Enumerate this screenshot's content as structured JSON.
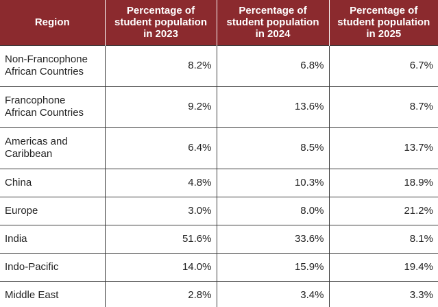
{
  "table": {
    "headers": [
      "Region",
      "Percentage of student population in 2023",
      "Percentage of student population in 2024",
      "Percentage of student population in 2025"
    ],
    "rows": [
      {
        "region": "Non-Francophone African Countries",
        "y2023": "8.2%",
        "y2024": "6.8%",
        "y2025": "6.7%"
      },
      {
        "region": "Francophone African Countries",
        "y2023": "9.2%",
        "y2024": "13.6%",
        "y2025": "8.7%"
      },
      {
        "region": "Americas and Caribbean",
        "y2023": "6.4%",
        "y2024": "8.5%",
        "y2025": "13.7%"
      },
      {
        "region": "China",
        "y2023": "4.8%",
        "y2024": "10.3%",
        "y2025": "18.9%"
      },
      {
        "region": "Europe",
        "y2023": "3.0%",
        "y2024": "8.0%",
        "y2025": "21.2%"
      },
      {
        "region": "India",
        "y2023": "51.6%",
        "y2024": "33.6%",
        "y2025": "8.1%"
      },
      {
        "region": "Indo-Pacific",
        "y2023": "14.0%",
        "y2024": "15.9%",
        "y2025": "19.4%"
      },
      {
        "region": "Middle East",
        "y2023": "2.8%",
        "y2024": "3.4%",
        "y2025": "3.3%"
      }
    ]
  },
  "colors": {
    "header_background": "#8b2a2e",
    "header_text": "#ffffff",
    "body_text": "#222222",
    "row_border": "#3a3a3a"
  }
}
